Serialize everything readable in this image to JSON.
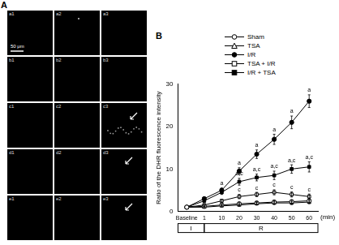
{
  "panel_a": {
    "label": "A",
    "scale_bar": "50 μm",
    "images": [
      [
        "a1",
        "a2",
        "a3"
      ],
      [
        "b1",
        "b2",
        "b3"
      ],
      [
        "c1",
        "c2",
        "c3"
      ],
      [
        "d1",
        "d2",
        "d3"
      ],
      [
        "e1",
        "e2",
        "e3"
      ]
    ]
  },
  "chart_data": {
    "label": "B",
    "type": "line",
    "y_label": "Ratio of the DHR fluorescence intensity",
    "x_label": "(min)",
    "categories": [
      "Baseline",
      "1",
      "10",
      "20",
      "30",
      "40",
      "50",
      "60"
    ],
    "ylim": [
      0,
      30
    ],
    "yticks": [
      0,
      10,
      20,
      30
    ],
    "grid": false,
    "legend": "top-left",
    "series": [
      {
        "name": "Sham",
        "color": "#000000",
        "marker": "open_circle",
        "values": [
          1,
          1.2,
          1.5,
          1.8,
          2,
          2.2,
          2.3,
          2.5
        ],
        "errors": [
          0,
          0.1,
          0.2,
          0.3,
          0.3,
          0.4,
          0.4,
          0.5
        ]
      },
      {
        "name": "TSA",
        "color": "#000000",
        "marker": "open_triangle",
        "values": [
          1,
          1,
          1.3,
          1.5,
          1.8,
          2,
          2,
          2.2
        ],
        "errors": [
          0,
          0.1,
          0.2,
          0.3,
          0.3,
          0.4,
          0.4,
          0.4
        ]
      },
      {
        "name": "I/R",
        "color": "#000000",
        "marker": "filled_circle",
        "values": [
          1,
          3,
          5,
          9.5,
          13.5,
          17,
          21,
          26
        ],
        "errors": [
          0,
          0.3,
          0.5,
          0.8,
          1,
          1.2,
          1.5,
          1.5
        ]
      },
      {
        "name": "TSA + I/R",
        "color": "#000000",
        "marker": "open_square",
        "values": [
          1,
          1.5,
          2.5,
          3.5,
          4,
          4.5,
          4,
          3.5
        ],
        "errors": [
          0,
          0.2,
          0.3,
          0.5,
          0.5,
          0.6,
          0.6,
          0.6
        ]
      },
      {
        "name": "I/R + TSA",
        "color": "#000000",
        "marker": "filled_square",
        "values": [
          1,
          2.5,
          4.5,
          7,
          8,
          8.5,
          10,
          10.5
        ],
        "errors": [
          0,
          0.3,
          0.5,
          0.8,
          0.8,
          1,
          1,
          1.2
        ]
      }
    ],
    "annotations": [
      {
        "series": "I/R",
        "x": "10",
        "text": "a"
      },
      {
        "series": "I/R",
        "x": "20",
        "text": "a"
      },
      {
        "series": "I/R",
        "x": "30",
        "text": "a"
      },
      {
        "series": "I/R",
        "x": "40",
        "text": "a"
      },
      {
        "series": "I/R",
        "x": "50",
        "text": "a"
      },
      {
        "series": "I/R",
        "x": "60",
        "text": "a"
      },
      {
        "series": "I/R + TSA",
        "x": "20",
        "text": "a,c"
      },
      {
        "series": "I/R + TSA",
        "x": "30",
        "text": "a,c"
      },
      {
        "series": "I/R + TSA",
        "x": "40",
        "text": "a,c"
      },
      {
        "series": "I/R + TSA",
        "x": "50",
        "text": "a,c"
      },
      {
        "series": "I/R + TSA",
        "x": "60",
        "text": "a,c"
      },
      {
        "series": "TSA + I/R",
        "x": "20",
        "text": "c"
      },
      {
        "series": "TSA + I/R",
        "x": "30",
        "text": "c"
      },
      {
        "series": "TSA + I/R",
        "x": "40",
        "text": "c"
      },
      {
        "series": "TSA + I/R",
        "x": "50",
        "text": "c"
      },
      {
        "series": "TSA + I/R",
        "x": "60",
        "text": "c"
      }
    ],
    "phases": [
      {
        "label": "I",
        "from": "Baseline",
        "to": "1"
      },
      {
        "label": "R",
        "from": "1",
        "to": "60"
      }
    ]
  }
}
